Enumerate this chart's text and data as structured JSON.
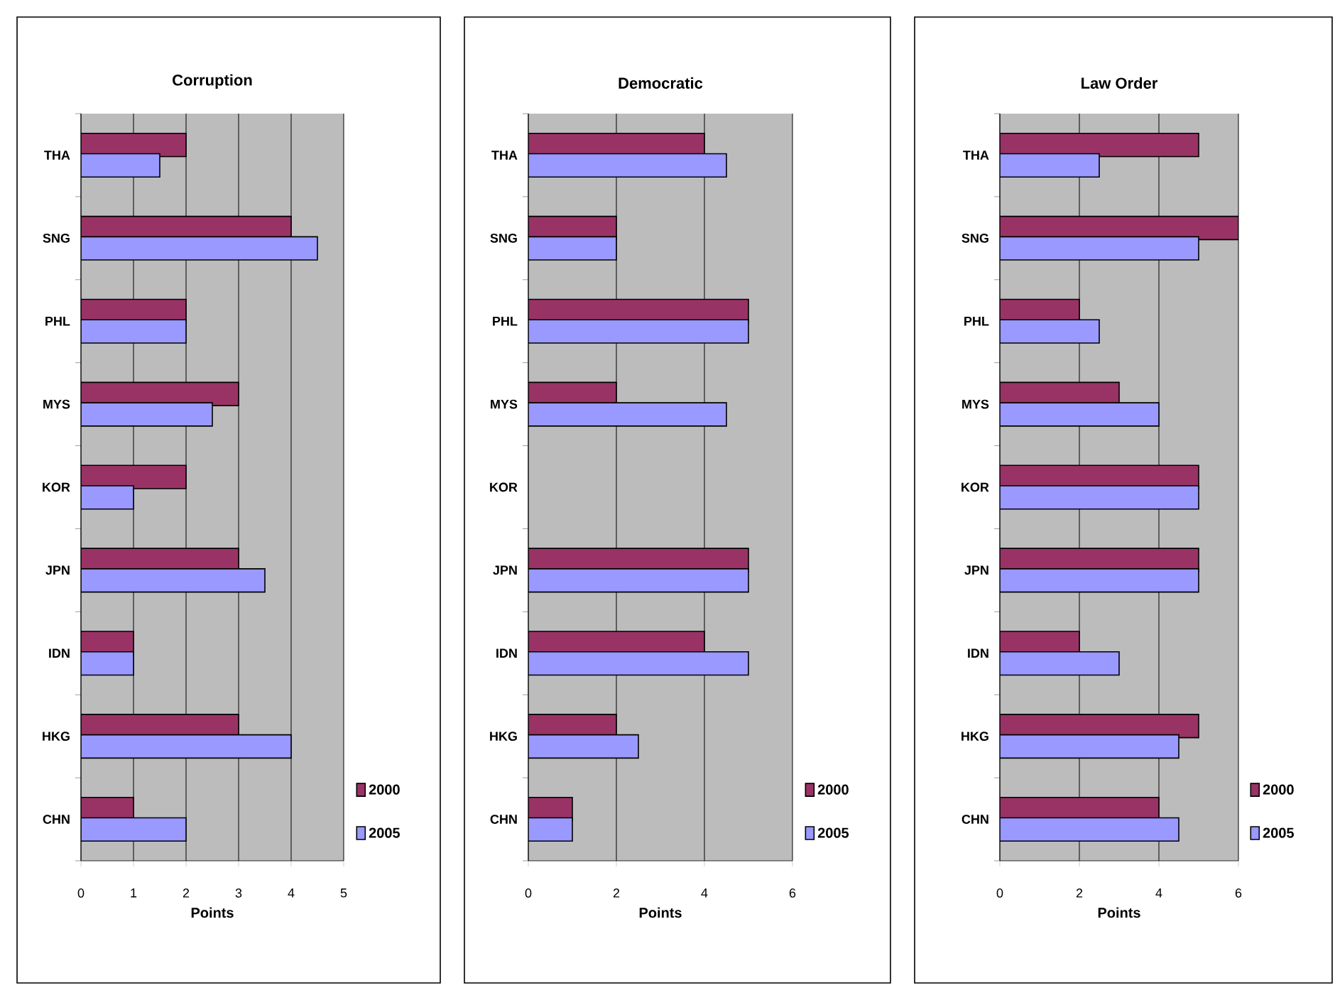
{
  "chart_data": [
    {
      "type": "bar",
      "orientation": "horizontal",
      "title": "Corruption",
      "xlabel": "Points",
      "categories": [
        "THA",
        "SNG",
        "PHL",
        "MYS",
        "KOR",
        "JPN",
        "IDN",
        "HKG",
        "CHN"
      ],
      "series": [
        {
          "name": "2000",
          "color": "#993366",
          "values": [
            2,
            4,
            2,
            3,
            2,
            3,
            1,
            3,
            1
          ]
        },
        {
          "name": "2005",
          "color": "#9999ff",
          "values": [
            1.5,
            4.5,
            2,
            2.5,
            1,
            3.5,
            1,
            4,
            2
          ]
        }
      ],
      "xlim": [
        0,
        5
      ],
      "xticks": [
        0,
        1,
        2,
        3,
        4,
        5
      ],
      "grid": "x",
      "legend": "right"
    },
    {
      "type": "bar",
      "orientation": "horizontal",
      "title": "Democratic",
      "xlabel": "Points",
      "categories": [
        "THA",
        "SNG",
        "PHL",
        "MYS",
        "KOR",
        "JPN",
        "IDN",
        "HKG",
        "CHN"
      ],
      "series": [
        {
          "name": "2000",
          "color": "#993366",
          "values": [
            4,
            2,
            5,
            2,
            null,
            5,
            4,
            2,
            1
          ]
        },
        {
          "name": "2005",
          "color": "#9999ff",
          "values": [
            4.5,
            2,
            5,
            4.5,
            null,
            5,
            5,
            2.5,
            1
          ]
        }
      ],
      "xlim": [
        0,
        6
      ],
      "xticks": [
        0,
        2,
        4,
        6
      ],
      "grid": "x",
      "legend": "right"
    },
    {
      "type": "bar",
      "orientation": "horizontal",
      "title": "Law Order",
      "xlabel": "Points",
      "categories": [
        "THA",
        "SNG",
        "PHL",
        "MYS",
        "KOR",
        "JPN",
        "IDN",
        "HKG",
        "CHN"
      ],
      "series": [
        {
          "name": "2000",
          "color": "#993366",
          "values": [
            5,
            6,
            2,
            3,
            5,
            5,
            2,
            5,
            4
          ]
        },
        {
          "name": "2005",
          "color": "#9999ff",
          "values": [
            2.5,
            5,
            2.5,
            4,
            5,
            5,
            3,
            4.5,
            4.5
          ]
        }
      ],
      "xlim": [
        0,
        6
      ],
      "xticks": [
        0,
        2,
        4,
        6
      ],
      "grid": "x",
      "legend": "right"
    }
  ]
}
